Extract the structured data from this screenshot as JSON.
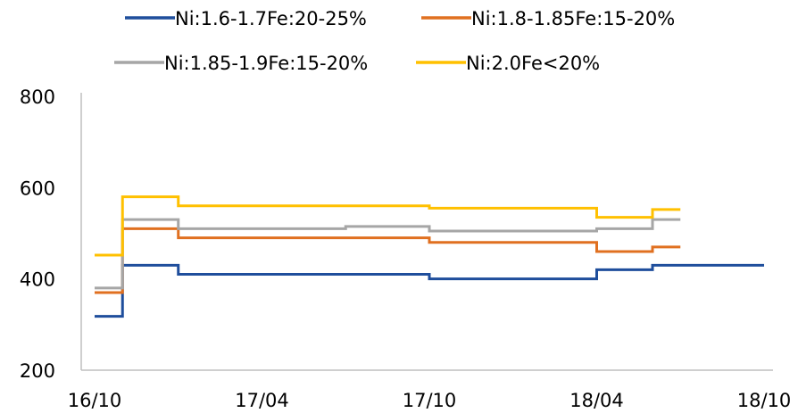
{
  "chart_data": {
    "type": "line",
    "title": "",
    "xlabel": "",
    "ylabel": "",
    "x_ticks": [
      "16/10",
      "17/04",
      "17/10",
      "18/04",
      "18/10"
    ],
    "y_ticks": [
      "200",
      "400",
      "600",
      "800"
    ],
    "xlim": [
      "2016-10",
      "2018-10"
    ],
    "ylim": [
      200,
      800
    ],
    "step": true,
    "grid": false,
    "legend_position": "top",
    "series": [
      {
        "name": "Ni:1.6-1.7Fe:20-25%",
        "color": "#1f4e9c",
        "points": [
          [
            "2016-10",
            318
          ],
          [
            "2016-11",
            430
          ],
          [
            "2017-01",
            410
          ],
          [
            "2017-10",
            400
          ],
          [
            "2018-04",
            420
          ],
          [
            "2018-06",
            430
          ],
          [
            "2018-10",
            430
          ]
        ]
      },
      {
        "name": "Ni:1.8-1.85Fe:15-20%",
        "color": "#e07020",
        "points": [
          [
            "2016-10",
            370
          ],
          [
            "2016-11",
            510
          ],
          [
            "2017-01",
            490
          ],
          [
            "2017-10",
            480
          ],
          [
            "2018-04",
            460
          ],
          [
            "2018-06",
            470
          ],
          [
            "2018-07",
            470
          ]
        ]
      },
      {
        "name": "Ni:1.85-1.9Fe:15-20%",
        "color": "#a6a6a6",
        "points": [
          [
            "2016-10",
            380
          ],
          [
            "2016-11",
            530
          ],
          [
            "2017-01",
            510
          ],
          [
            "2017-07",
            515
          ],
          [
            "2017-10",
            505
          ],
          [
            "2018-04",
            510
          ],
          [
            "2018-06",
            530
          ],
          [
            "2018-07",
            530
          ]
        ]
      },
      {
        "name": "Ni:2.0Fe<20%",
        "color": "#ffc000",
        "points": [
          [
            "2016-10",
            452
          ],
          [
            "2016-11",
            580
          ],
          [
            "2017-01",
            560
          ],
          [
            "2017-10",
            555
          ],
          [
            "2018-04",
            535
          ],
          [
            "2018-06",
            552
          ],
          [
            "2018-07",
            552
          ]
        ]
      }
    ]
  }
}
